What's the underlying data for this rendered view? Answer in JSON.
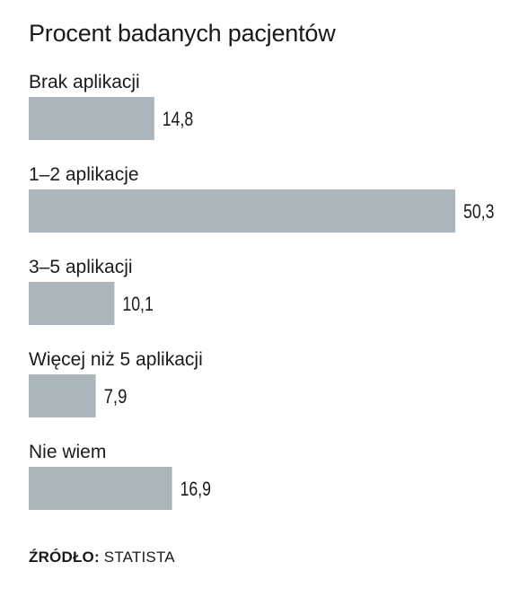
{
  "chart_data": {
    "type": "bar",
    "orientation": "horizontal",
    "title": "Procent badanych pacjentów",
    "categories": [
      "Brak aplikacji",
      "1–2 aplikacje",
      "3–5 aplikacji",
      "Więcej niż 5 aplikacji",
      "Nie wiem"
    ],
    "values": [
      14.8,
      50.3,
      10.1,
      7.9,
      16.9
    ],
    "value_labels": [
      "14,8",
      "50,3",
      "10,1",
      "7,9",
      "16,9"
    ],
    "xlim": [
      0,
      50.3
    ],
    "grid": false,
    "legend": "none",
    "bar_color": "#abb5bc"
  },
  "source": {
    "label": "ŹRÓDŁO:",
    "text": "STATISTA"
  }
}
